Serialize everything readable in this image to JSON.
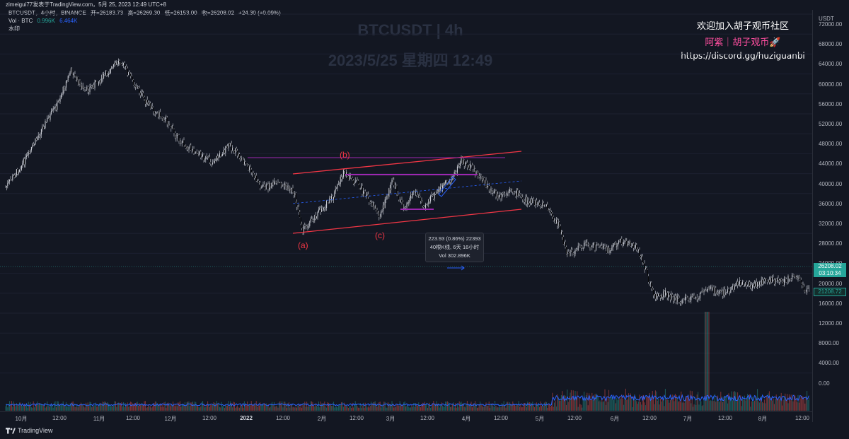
{
  "header": {
    "publish_line": "zimeigui77发表于TradingView.com，5月 25, 2023 12:49 UTC+8"
  },
  "legend": {
    "symbol": "BTCUSDT，4小时，BINANCE",
    "open": "开=26183.73",
    "high": "高=26269.30",
    "low": "低=26153.00",
    "close": "收=26208.02",
    "change": "+24.30 (+0.09%)",
    "vol_label": "Vol · BTC",
    "vol_value1": "0.996K",
    "vol_value2": "6.464K",
    "watermark_label": "水印"
  },
  "watermark": {
    "line1": "BTCUSDT | 4h",
    "line2": "2023/5/25 星期四 12:49"
  },
  "promo": {
    "line1": "欢迎加入胡子观币社区",
    "line2": "阿紫｜胡子观币🚀",
    "line3": "https://discord.gg/huziguanbi"
  },
  "price_axis": {
    "unit": "USDT",
    "ticks": [
      "72000.00",
      "68000.00",
      "64000.00",
      "60000.00",
      "56000.00",
      "52000.00",
      "48000.00",
      "44000.00",
      "40000.00",
      "36000.00",
      "32000.00",
      "28000.00",
      "24000.00",
      "20000.00",
      "16000.00",
      "12000.00",
      "8000.00",
      "4000.00",
      "0.00"
    ],
    "last_price": "26208.02",
    "countdown": "03:10:34",
    "ref_price": "21208.72"
  },
  "time_axis": {
    "ticks": [
      "10月",
      "12:00",
      "11月",
      "12:00",
      "12月",
      "12:00",
      "2022",
      "12:00",
      "2月",
      "12:00",
      "3月",
      "12:00",
      "4月",
      "12:00",
      "5月",
      "12:00",
      "6月",
      "12:00",
      "7月",
      "12:00",
      "8月",
      "12:00"
    ]
  },
  "annotations": {
    "wave_a": "(a)",
    "wave_b": "(b)",
    "wave_c": "(c)"
  },
  "tooltip": {
    "line1": "223.93 (0.86%) 22393",
    "line2": "40根K线, 6天 16小时",
    "line3": "Vol 302.896K"
  },
  "footer": {
    "brand": "TradingView"
  },
  "colors": {
    "background": "#131722",
    "up": "#26a69a",
    "down": "#ef5350",
    "channel": "#f23645",
    "purple": "#9c27b0",
    "blue_dash": "#2962ff",
    "volume_ma": "#2962ff"
  }
}
